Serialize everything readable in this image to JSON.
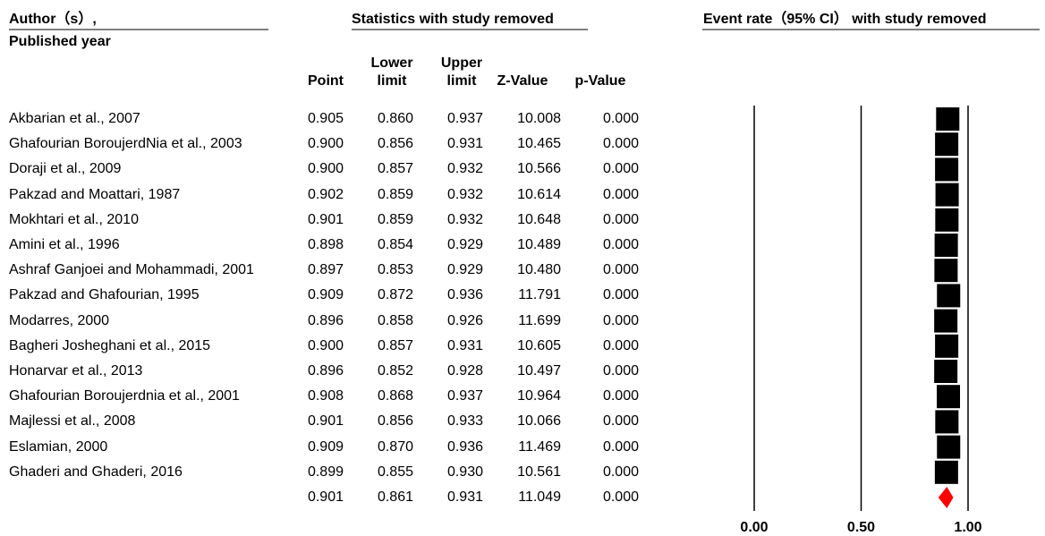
{
  "chart_data": {
    "type": "forest",
    "header_author": "Author（s）,",
    "header_year": "Published year",
    "header_stats": "Statistics with study removed",
    "header_plot": "Event rate（95% CI） with study removed",
    "categories": [
      "Akbarian et al., 2007",
      "Ghafourian BoroujerdNia et al., 2003",
      "Doraji et al., 2009",
      "Pakzad and Moattari, 1987",
      "Mokhtari et al., 2010",
      "Amini et al., 1996",
      "Ashraf Ganjoei and Mohammadi, 2001",
      "Pakzad and Ghafourian, 1995",
      "Modarres, 2000",
      "Bagheri Josheghani et al., 2015",
      "Honarvar et al., 2013",
      "Ghafourian Boroujerdnia et al., 2001",
      "Majlessi et al., 2008",
      "Eslamian, 2000",
      "Ghaderi and Ghaderi, 2016",
      null
    ],
    "series": [
      {
        "name": "Point",
        "values": [
          0.905,
          0.9,
          0.9,
          0.902,
          0.901,
          0.898,
          0.897,
          0.909,
          0.896,
          0.9,
          0.896,
          0.908,
          0.901,
          0.909,
          0.899,
          0.901
        ],
        "value_labels": [
          "0.905",
          "0.900",
          "0.900",
          "0.902",
          "0.901",
          "0.898",
          "0.897",
          "0.909",
          "0.896",
          "0.900",
          "0.896",
          "0.908",
          "0.901",
          "0.909",
          "0.899",
          "0.901"
        ]
      },
      {
        "name": "Lower limit",
        "values": [
          0.86,
          0.856,
          0.857,
          0.859,
          0.859,
          0.854,
          0.853,
          0.872,
          0.858,
          0.857,
          0.852,
          0.868,
          0.856,
          0.87,
          0.855,
          0.861
        ],
        "value_labels": [
          "0.860",
          "0.856",
          "0.857",
          "0.859",
          "0.859",
          "0.854",
          "0.853",
          "0.872",
          "0.858",
          "0.857",
          "0.852",
          "0.868",
          "0.856",
          "0.870",
          "0.855",
          "0.861"
        ]
      },
      {
        "name": "Upper limit",
        "values": [
          0.937,
          0.931,
          0.932,
          0.932,
          0.932,
          0.929,
          0.929,
          0.936,
          0.926,
          0.931,
          0.928,
          0.937,
          0.933,
          0.936,
          0.93,
          0.931
        ],
        "value_labels": [
          "0.937",
          "0.931",
          "0.932",
          "0.932",
          "0.932",
          "0.929",
          "0.929",
          "0.936",
          "0.926",
          "0.931",
          "0.928",
          "0.937",
          "0.933",
          "0.936",
          "0.930",
          "0.931"
        ]
      },
      {
        "name": "Z-Value",
        "values": [
          10.008,
          10.465,
          10.566,
          10.614,
          10.648,
          10.489,
          10.48,
          11.791,
          11.699,
          10.605,
          10.497,
          10.964,
          10.066,
          11.469,
          10.561,
          11.049
        ],
        "value_labels": [
          "10.008",
          "10.465",
          "10.566",
          "10.614",
          "10.648",
          "10.489",
          "10.480",
          "11.791",
          "11.699",
          "10.605",
          "10.497",
          "10.964",
          "10.066",
          "11.469",
          "10.561",
          "11.049"
        ]
      },
      {
        "name": "p-Value",
        "values": [
          0,
          0,
          0,
          0,
          0,
          0,
          0,
          0,
          0,
          0,
          0,
          0,
          0,
          0,
          0,
          0
        ],
        "value_labels": [
          "0.000",
          "0.000",
          "0.000",
          "0.000",
          "0.000",
          "0.000",
          "0.000",
          "0.000",
          "0.000",
          "0.000",
          "0.000",
          "0.000",
          "0.000",
          "0.000",
          "0.000",
          "0.000"
        ]
      }
    ],
    "marker_color": "#000000",
    "summary_color": "#ff0000",
    "xlim": [
      0,
      1
    ],
    "xticks": [
      {
        "value": 0,
        "label": "0.00"
      },
      {
        "value": 0.5,
        "label": "0.50"
      },
      {
        "value": 1,
        "label": "1.00"
      }
    ]
  }
}
